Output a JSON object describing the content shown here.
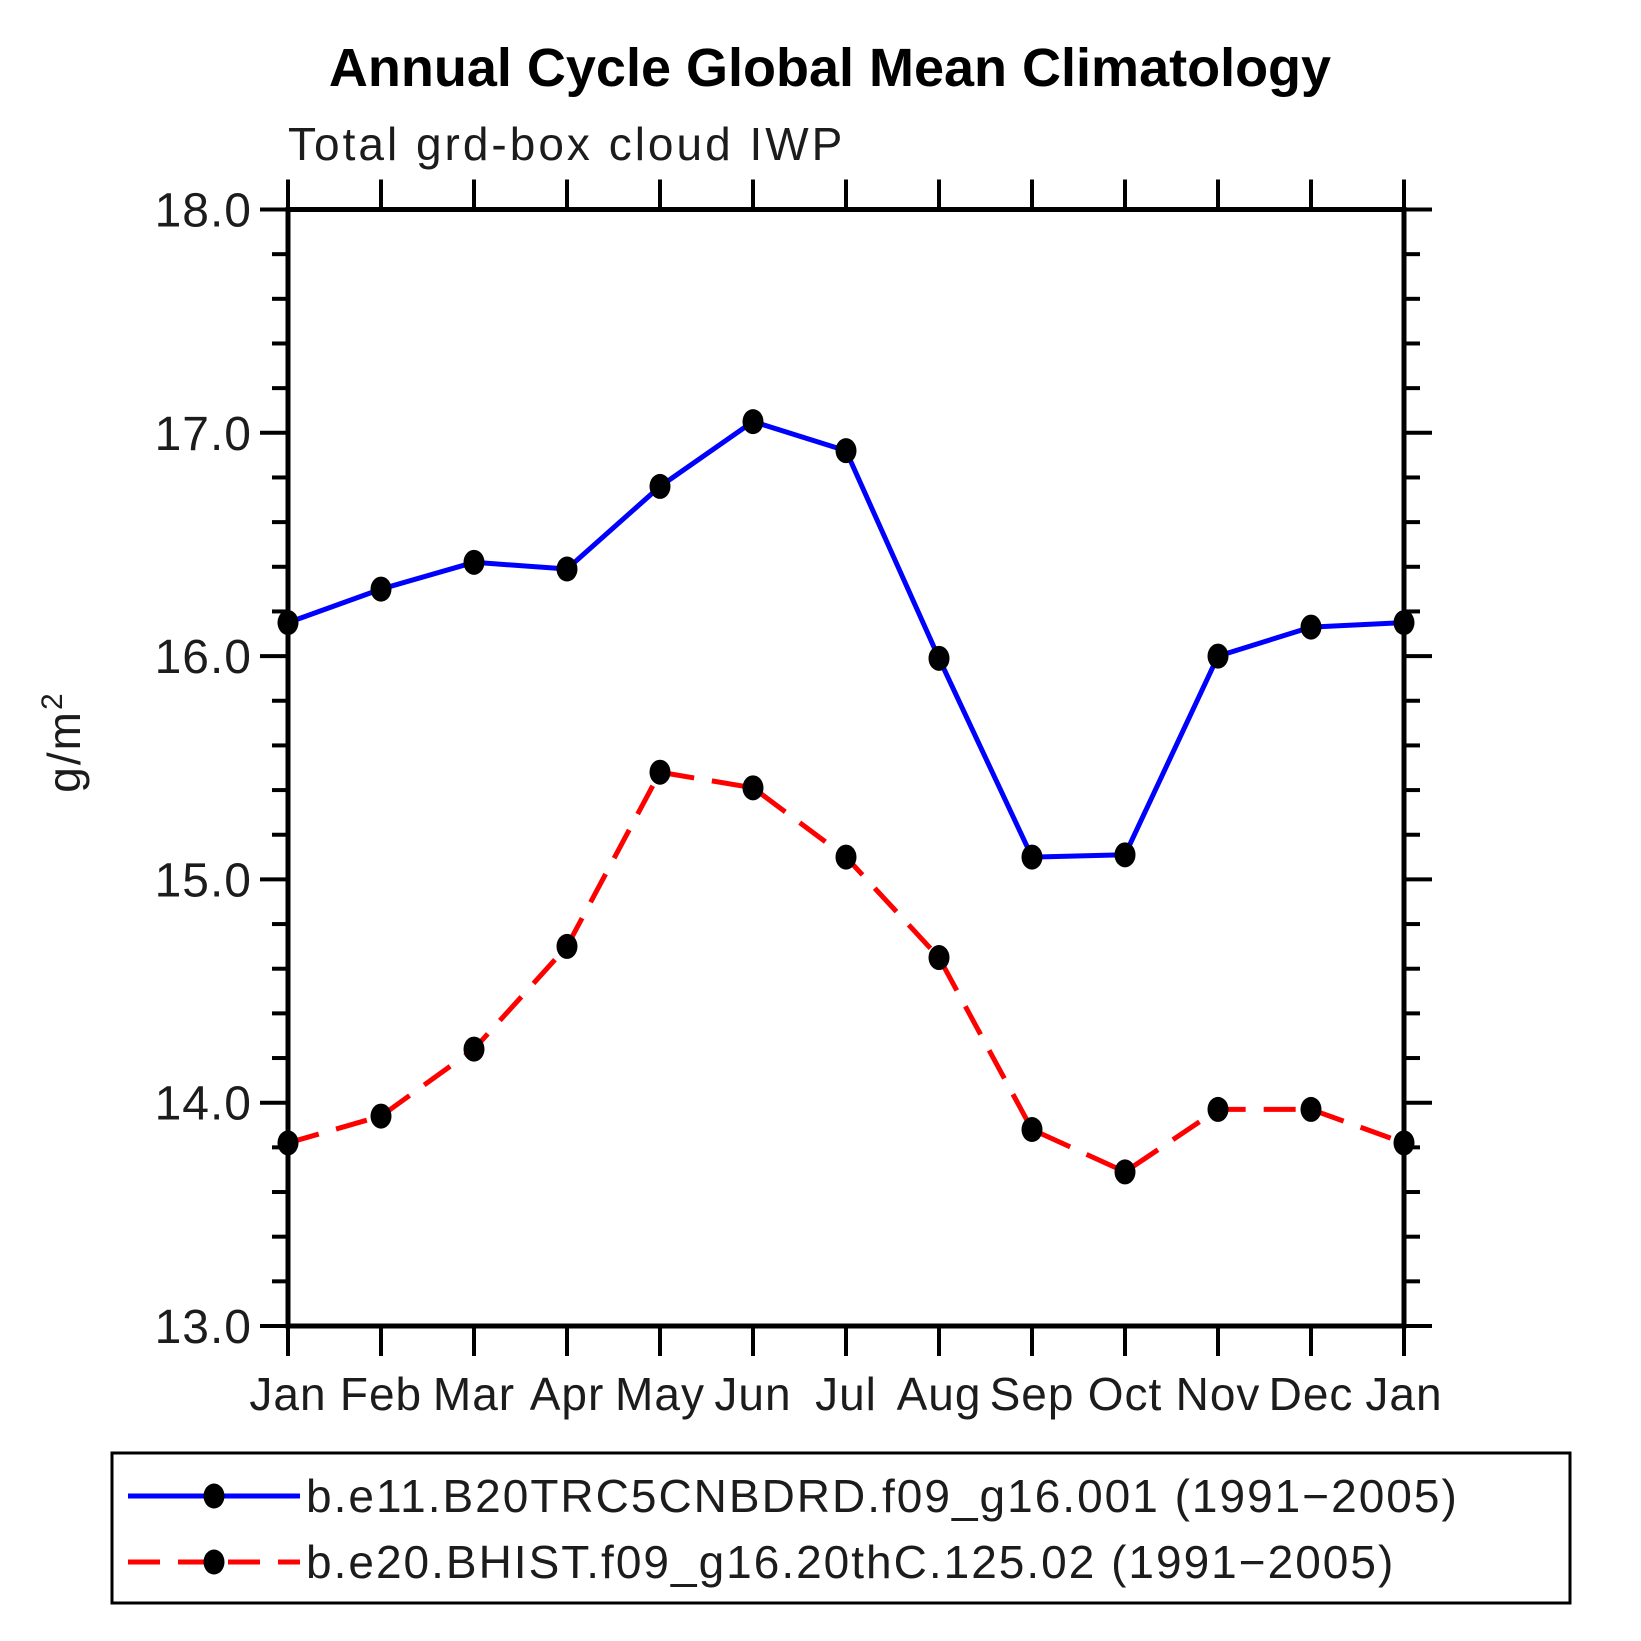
{
  "chart_data": {
    "type": "line",
    "title": "Annual Cycle Global Mean Climatology",
    "subtitle": "Total grd-box cloud IWP",
    "ylabel": "g/m²",
    "ylabel_base": "g/m",
    "ylabel_sup": "2",
    "x_categories": [
      "Jan",
      "Feb",
      "Mar",
      "Apr",
      "May",
      "Jun",
      "Jul",
      "Aug",
      "Sep",
      "Oct",
      "Nov",
      "Dec",
      "Jan"
    ],
    "ylim": [
      13.0,
      18.0
    ],
    "ytick_major_values": [
      13.0,
      14.0,
      15.0,
      16.0,
      17.0,
      18.0
    ],
    "ytick_labels": [
      "13.0",
      "14.0",
      "15.0",
      "16.0",
      "17.0",
      "18.0"
    ],
    "ytick_minor_step": 0.2,
    "grid": "off",
    "legend_position": "bottom",
    "axis_color": "#000000",
    "marker_shape": "filled-circle",
    "series": [
      {
        "name": "b.e11.B20TRC5CNBDRD.f09_g16.001 (1991−2005)",
        "color": "#0000ff",
        "line_style": "solid",
        "marker_color": "#000000",
        "values": [
          16.15,
          16.3,
          16.42,
          16.39,
          16.76,
          17.05,
          16.92,
          15.99,
          15.1,
          15.11,
          16.0,
          16.13,
          16.15
        ]
      },
      {
        "name": "b.e20.BHIST.f09_g16.20thC.125.02 (1991−2005)",
        "color": "#ff0000",
        "line_style": "dashed",
        "marker_color": "#000000",
        "values": [
          13.82,
          13.94,
          14.24,
          14.7,
          15.48,
          15.41,
          15.1,
          14.65,
          13.88,
          13.69,
          13.97,
          13.97,
          13.82
        ]
      }
    ]
  }
}
